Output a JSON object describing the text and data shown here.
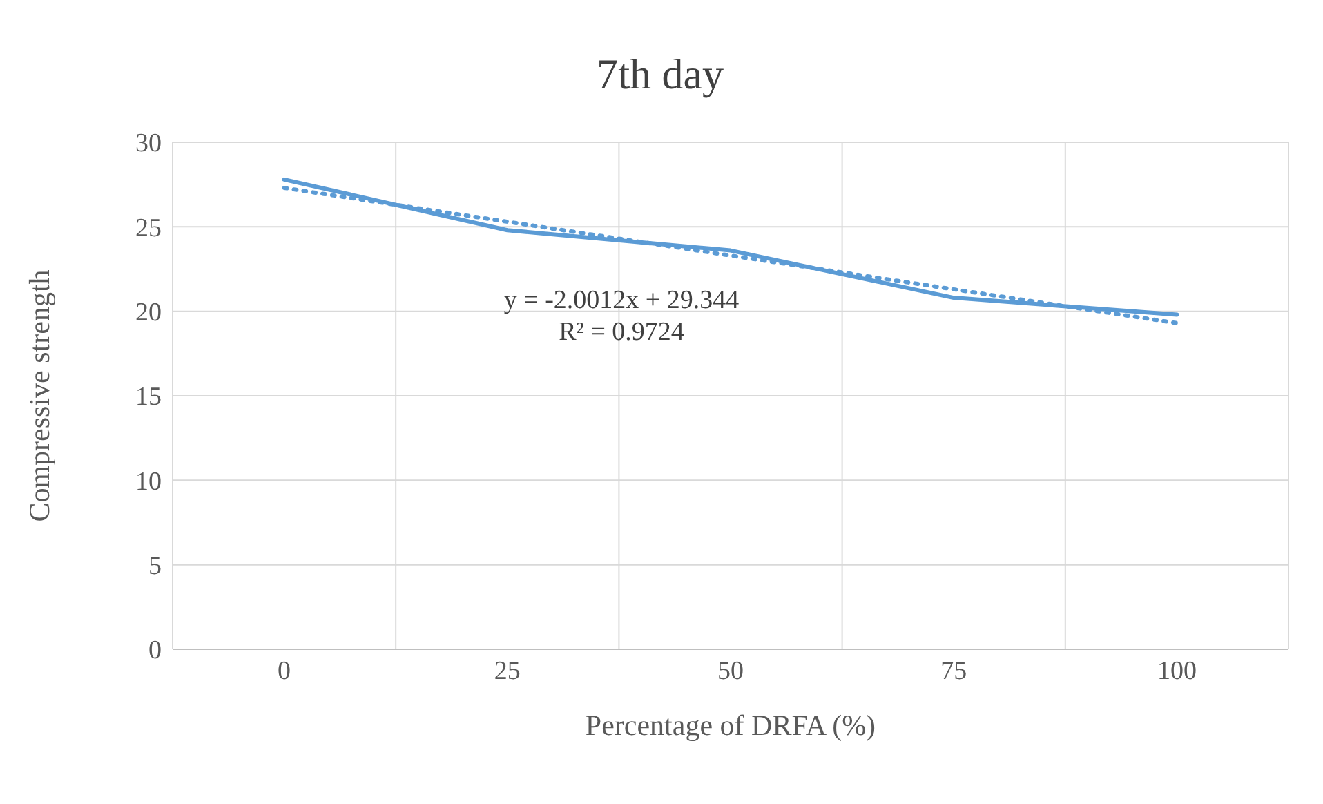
{
  "chart_data": {
    "type": "line",
    "title": "7th day",
    "xlabel": "Percentage of DRFA (%)",
    "ylabel": "Compressive strength",
    "categories": [
      "0",
      "25",
      "50",
      "75",
      "100"
    ],
    "series": [
      {
        "color": "#5b9bd5",
        "values": [
          27.8,
          24.8,
          23.6,
          20.8,
          19.8
        ]
      },
      {
        "type": "line",
        "line_style": "dotted",
        "color": "#5b9bd5",
        "values": [
          27.3,
          25.3,
          23.3,
          21.3,
          19.3
        ]
      }
    ],
    "annotations": [
      "y = -2.0012x + 29.344",
      "R² = 0.9724"
    ],
    "ylim": [
      0,
      30
    ],
    "yticks": [
      0,
      5,
      10,
      15,
      20,
      25,
      30
    ],
    "grid": true,
    "marker": "none",
    "line_style": "solid",
    "legend": false
  }
}
